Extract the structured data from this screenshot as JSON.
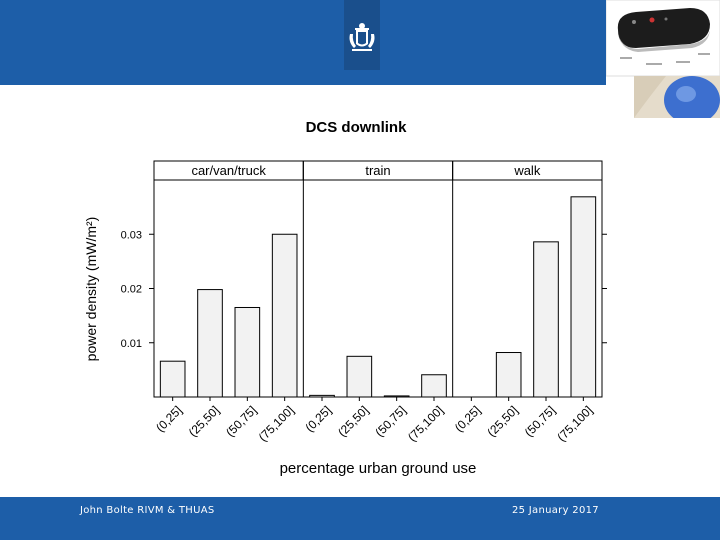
{
  "footer": {
    "author": "John Bolte RIVM & THUAS",
    "date": "25 January 2017"
  },
  "colors": {
    "header_blue": "#1d5ea8",
    "logo_blue": "#1a4f8c",
    "bar_fill": "#f2f2f2"
  },
  "icons": {
    "logo": "coat-of-arms-icon",
    "photo": "device-photo"
  },
  "chart_data": {
    "type": "bar",
    "title": "DCS downlink",
    "xlabel": "percentage urban ground use",
    "ylabel": "power density (mW/m²)",
    "ylim": [
      0,
      0.04
    ],
    "yticks": [
      0.01,
      0.02,
      0.03
    ],
    "ytick_labels": [
      "0.01",
      "0.02",
      "0.03"
    ],
    "categories": [
      "(0,25]",
      "(25,50]",
      "(50,75]",
      "(75,100]"
    ],
    "panels": [
      {
        "name": "car/van/truck",
        "values": [
          0.0066,
          0.0198,
          0.0165,
          0.03
        ]
      },
      {
        "name": "train",
        "values": [
          0.0003,
          0.0075,
          0.0002,
          0.0041
        ]
      },
      {
        "name": "walk",
        "values": [
          0.0,
          0.0082,
          0.0286,
          0.0369
        ]
      }
    ],
    "grid": false,
    "legend": "none"
  }
}
